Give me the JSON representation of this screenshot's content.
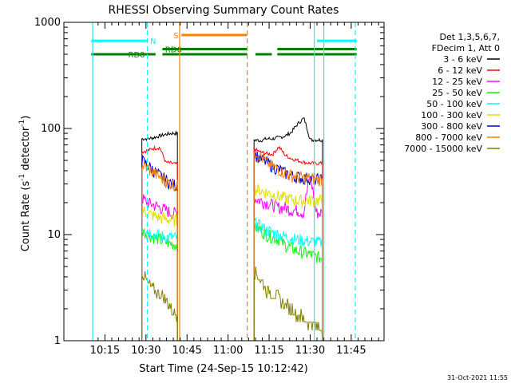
{
  "chart_data": {
    "type": "line",
    "title": "RHESSI Observing Summary Count Rates",
    "xlabel": "Start Time (24-Sep-15 10:12:42)",
    "ylabel_parts": [
      "Count Rate (s",
      "-1",
      " detector",
      "-1",
      ")"
    ],
    "yscale": "log",
    "ylim": [
      1,
      1000
    ],
    "xlim_min": [
      10.0,
      11.95
    ],
    "x_unit": "minutes since 10:00",
    "x_ticks": [
      {
        "m": 15,
        "label": "10:15"
      },
      {
        "m": 30,
        "label": "10:30"
      },
      {
        "m": 45,
        "label": "10:45"
      },
      {
        "m": 60,
        "label": "11:00"
      },
      {
        "m": 75,
        "label": "11:15"
      },
      {
        "m": 90,
        "label": "11:30"
      },
      {
        "m": 105,
        "label": "11:45"
      }
    ],
    "y_ticks": [
      {
        "v": 1,
        "label": "1"
      },
      {
        "v": 10,
        "label": "10"
      },
      {
        "v": 100,
        "label": "100"
      },
      {
        "v": 1000,
        "label": "1000"
      }
    ],
    "legend_header": [
      "Det 1,3,5,6,7,",
      "FDecim 1, Att 0"
    ],
    "legend_placement": "right",
    "series": [
      {
        "name": "3 - 6 keV",
        "color": "#000000",
        "seg1": [
          80,
          80,
          82,
          85,
          88,
          90,
          90
        ],
        "seg2": [
          78,
          77,
          80,
          80,
          82,
          85,
          92,
          110,
          125,
          78,
          78,
          78
        ]
      },
      {
        "name": "6 - 12 keV",
        "color": "#ff0000",
        "seg1": [
          60,
          62,
          65,
          66,
          48,
          47,
          46
        ],
        "seg2": [
          64,
          60,
          58,
          57,
          67,
          56,
          52,
          50,
          48,
          47,
          47,
          47
        ]
      },
      {
        "name": "12 - 25 keV",
        "color": "#ff00ff",
        "seg1": [
          22,
          20,
          19,
          18,
          17,
          16,
          16
        ],
        "seg2": [
          22,
          21,
          20,
          19,
          18,
          18,
          17,
          17,
          16,
          35,
          16,
          16
        ]
      },
      {
        "name": "25 - 50 keV",
        "color": "#00ff00",
        "seg1": [
          11,
          10,
          9.5,
          9,
          8.5,
          8.2,
          8
        ],
        "seg2": [
          12,
          11,
          10,
          9.5,
          9,
          8,
          7.5,
          7,
          6.8,
          6.5,
          6.2,
          6
        ]
      },
      {
        "name": "50 - 100 keV",
        "color": "#00ffff",
        "seg1": [
          12,
          11,
          10,
          9.8,
          9.5,
          9.4,
          9.3
        ],
        "seg2": [
          13,
          12,
          11,
          10.5,
          10,
          9.6,
          9.3,
          9,
          8.8,
          8.6,
          8.5,
          8.4
        ]
      },
      {
        "name": "100 - 300 keV",
        "color": "#e0e000",
        "seg1": [
          17,
          16,
          15,
          14.5,
          14,
          13.8,
          13.5
        ],
        "seg2": [
          27,
          26,
          25,
          24,
          23,
          22,
          21.5,
          21,
          21,
          21,
          21,
          21
        ]
      },
      {
        "name": "300 - 800 keV",
        "color": "#0000cc",
        "seg1": [
          50,
          45,
          40,
          36,
          33,
          30,
          29
        ],
        "seg2": [
          58,
          52,
          48,
          44,
          41,
          38,
          36,
          35,
          34,
          34,
          33,
          33
        ]
      },
      {
        "name": "800 - 7000 keV",
        "color": "#ff8000",
        "seg1": [
          45,
          42,
          38,
          35,
          32,
          30,
          29
        ],
        "seg2": [
          63,
          55,
          48,
          44,
          41,
          38,
          36,
          35,
          34,
          34,
          33,
          33
        ]
      },
      {
        "name": "7000 - 15000 keV",
        "color": "#808000",
        "seg1": [
          4.5,
          3.5,
          3.0,
          2.8,
          2.5,
          2.0,
          1.8
        ],
        "seg2": [
          4.5,
          3.8,
          3.0,
          2.8,
          2.5,
          2.2,
          2.0,
          1.8,
          1.6,
          1.5,
          1.4,
          1.3
        ]
      }
    ],
    "segments": [
      {
        "start_min": 28.5,
        "end_min": 41.5
      },
      {
        "start_min": 69.5,
        "end_min": 94.5
      }
    ],
    "flags": [
      {
        "label": "N",
        "color": "#00ffff",
        "level": 670,
        "ranges": [
          [
            10,
            30.5
          ],
          [
            92.5,
            107
          ]
        ],
        "label_at": 31.5
      },
      {
        "label": "RD0",
        "color": "#008000",
        "level": 500,
        "ranges": [
          [
            10,
            33.5
          ],
          [
            36,
            67
          ],
          [
            70,
            76
          ],
          [
            78,
            107
          ]
        ],
        "label_at": 23.5
      },
      {
        "label": "RD6",
        "color": "#008000",
        "level": 560,
        "ranges": [
          [
            36,
            67
          ],
          [
            78,
            107
          ]
        ],
        "label_at": 37
      },
      {
        "label": "S",
        "color": "#ff8000",
        "level": 760,
        "ranges": [
          [
            43,
            67
          ]
        ],
        "label_at": 40
      }
    ],
    "vlines": [
      {
        "m": 10.5,
        "color": "#00ffff",
        "dash": false
      },
      {
        "m": 30.5,
        "color": "#00ffff",
        "dash": true
      },
      {
        "m": 42.3,
        "color": "#ff8000",
        "dash": false
      },
      {
        "m": 67,
        "color": "#ff8000",
        "dash": true
      },
      {
        "m": 91.5,
        "color": "#00ffff",
        "dash": false
      },
      {
        "m": 95,
        "color": "#00ffff",
        "dash": false
      },
      {
        "m": 106.5,
        "color": "#00ffff",
        "dash": true
      }
    ],
    "footer_date": "31-Oct-2021 11:55"
  }
}
